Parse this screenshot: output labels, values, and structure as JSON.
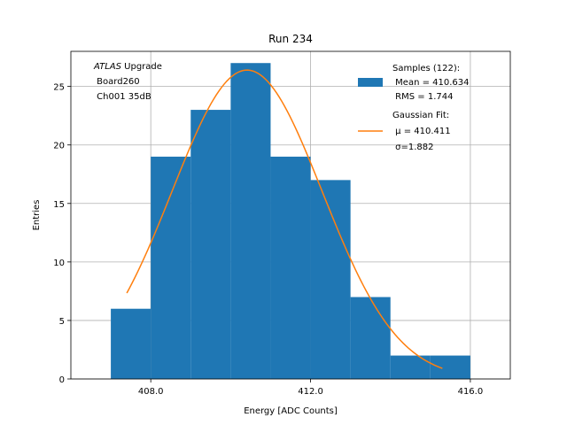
{
  "chart_data": {
    "type": "bar",
    "title": "Run 234",
    "xlabel": "Energy [ADC Counts]",
    "ylabel": "Entries",
    "xlim": [
      406.0,
      417.0
    ],
    "ylim": [
      0,
      28
    ],
    "grid": true,
    "xticks": [
      408.0,
      412.0,
      416.0
    ],
    "xtick_labels": [
      "408.0",
      "412.0",
      "416.0"
    ],
    "yticks": [
      0,
      5,
      10,
      15,
      20,
      25
    ],
    "ytick_labels": [
      "0",
      "5",
      "10",
      "15",
      "20",
      "25"
    ],
    "bin_edges": [
      407,
      408,
      409,
      410,
      411,
      412,
      413,
      414,
      415,
      416
    ],
    "counts": [
      6,
      19,
      23,
      27,
      19,
      17,
      7,
      2,
      2
    ],
    "fit": {
      "type": "gaussian",
      "mu": 410.411,
      "sigma": 1.882,
      "amplitude": 26.4,
      "x_range": [
        407.4,
        415.3
      ]
    },
    "colors": {
      "bars": "#1f77b4",
      "fit": "#ff7f0e",
      "grid": "#b0b0b0"
    },
    "legend": {
      "position": "top-right",
      "histogram": [
        "Samples (122):",
        " Mean = 410.634",
        " RMS = 1.744"
      ],
      "fit": [
        "Gaussian Fit:",
        " μ = 410.411",
        " σ=1.882"
      ]
    },
    "annotation": {
      "position": "top-left",
      "atlas": "ATLAS",
      "upgrade": " Upgrade",
      "lines": [
        " Board260",
        " Ch001 35dB"
      ]
    }
  }
}
